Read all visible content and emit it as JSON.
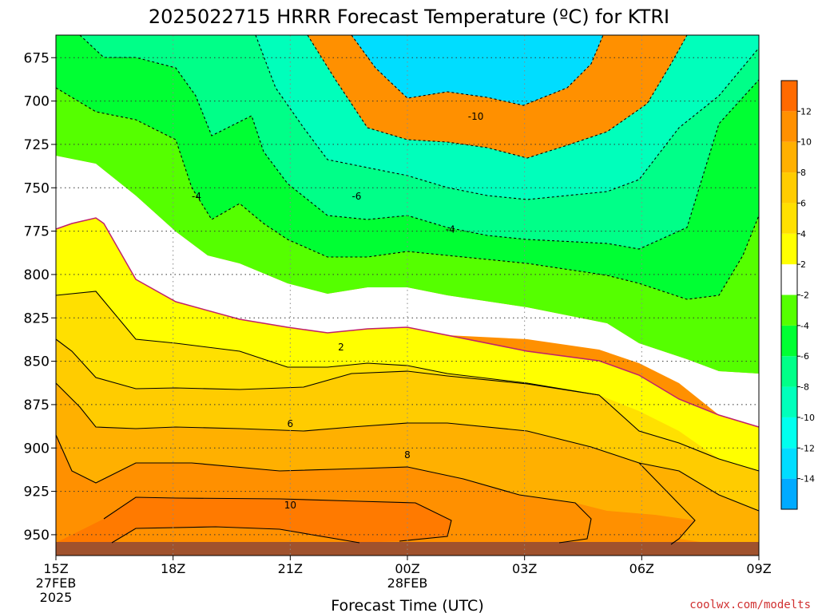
{
  "chart_data": {
    "type": "heatmap",
    "title": "2025022715 HRRR Forecast Temperature (ºC) for KTRI",
    "xlabel": "Forecast Time (UTC)",
    "credit": "coolwx.com/modelts",
    "x_ticks": [
      {
        "label": "15Z",
        "sub1": "27FEB",
        "sub2": "2025",
        "hour": 0
      },
      {
        "label": "18Z",
        "hour": 3
      },
      {
        "label": "21Z",
        "hour": 6
      },
      {
        "label": "00Z",
        "sub1": "28FEB",
        "hour": 9
      },
      {
        "label": "03Z",
        "hour": 12
      },
      {
        "label": "06Z",
        "hour": 15
      },
      {
        "label": "09Z",
        "hour": 18
      }
    ],
    "xlim": [
      0,
      18
    ],
    "ylim": [
      962,
      662
    ],
    "y_ticks": [
      675,
      700,
      725,
      750,
      775,
      800,
      825,
      850,
      875,
      900,
      925,
      950
    ],
    "colorbar": {
      "bounds": [
        -16,
        -14,
        -12,
        -10,
        -8,
        -6,
        -4,
        -2,
        2,
        4,
        6,
        8,
        10,
        12,
        14
      ],
      "colors": [
        "#00aaff",
        "#00ddff",
        "#00ffee",
        "#00ffbb",
        "#00ff88",
        "#00ff33",
        "#55ff00",
        "#ffffff",
        "#ffff00",
        "#ffe000",
        "#ffcc00",
        "#ffb000",
        "#ff9000",
        "#ff6a00"
      ],
      "tick_labels": [
        "-14",
        "-12",
        "-10",
        "-8",
        "-6",
        "-4",
        "-2",
        "2",
        "4",
        "6",
        "8",
        "10",
        "12"
      ]
    },
    "contour_labels": [
      {
        "text": "-10",
        "hour": 10.75,
        "p": 709
      },
      {
        "text": "-6",
        "hour": 7.7,
        "p": 755
      },
      {
        "text": "-4",
        "hour": 3.6,
        "p": 755
      },
      {
        "text": "-4",
        "hour": 10.1,
        "p": 774
      },
      {
        "text": "2",
        "hour": 7.3,
        "p": 842
      },
      {
        "text": "6",
        "hour": 6.0,
        "p": 886
      },
      {
        "text": "8",
        "hour": 9.0,
        "p": 904
      },
      {
        "text": "10",
        "hour": 6.0,
        "p": 933
      }
    ],
    "ground": {
      "top_p": 956,
      "color": "#a0522d"
    }
  }
}
